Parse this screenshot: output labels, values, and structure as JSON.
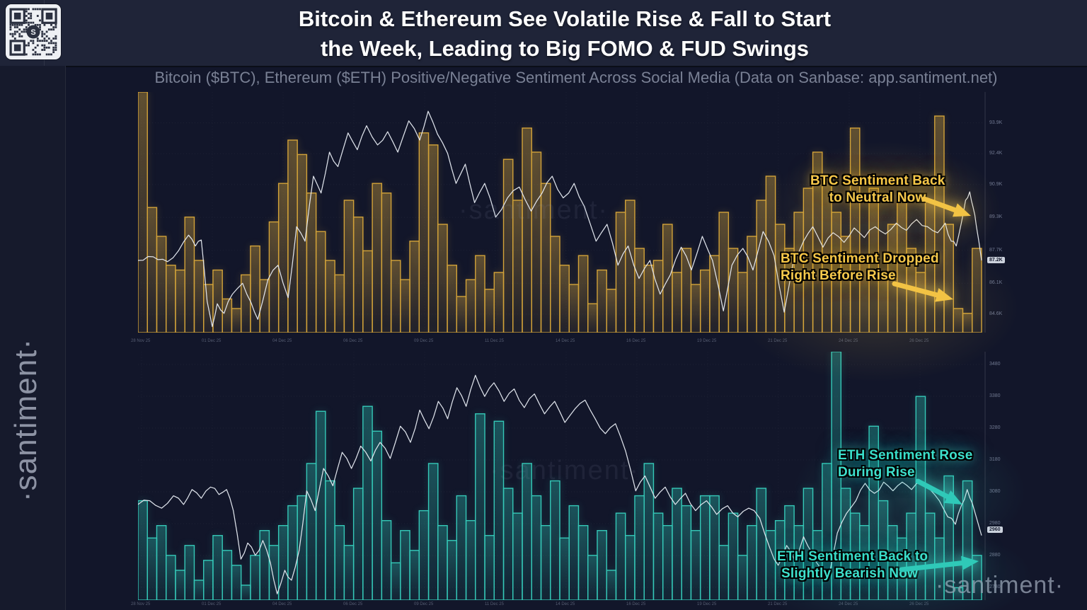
{
  "header": {
    "title_line1": "Bitcoin & Ethereum See Volatile Rise & Fall to Start",
    "title_line2": "the Week, Leading to Big FOMO & FUD Swings"
  },
  "subtitle": "Bitcoin ($BTC), Ethereum ($ETH) Positive/Negative Sentiment Across Social Media (Data on Sanbase: app.santiment.net)",
  "branding": {
    "sidebar_vertical_text": "·santiment·",
    "chart_watermark": "·santiment·",
    "footer_logo": "·santiment·",
    "qr_center_letter": "S"
  },
  "annotations": {
    "btc_back": {
      "line1": "BTC Sentiment Back",
      "line2": "to Neutral Now"
    },
    "btc_dropped": {
      "line1": "BTC Sentiment Dropped",
      "line2": "Right Before Rise"
    },
    "eth_rose": {
      "line1": "ETH Sentiment Rose",
      "line2": "During Rise"
    },
    "eth_bearish": {
      "line1": "ETH Sentiment Back to",
      "line2": "Slightly Bearish Now"
    }
  },
  "colors": {
    "page_bg": "#12162a",
    "header_bg": "#1f2438",
    "gold_bar": "#d3a339",
    "gold_text": "#f6c94c",
    "teal_bar": "#35c9b8",
    "teal_text": "#3ee0cc",
    "price_line": "#e9edf4",
    "axis_text": "#707890"
  },
  "chart_data": [
    {
      "type": "bar",
      "combo": "bar+line",
      "title": "BTC social sentiment (gold bars) with BTC price (white line)",
      "bar_series": "BTC Positive/Negative Sentiment (relative height 0-1)",
      "line_series": "BTC Price (USD)",
      "legend_position": "none",
      "grid": true,
      "ylim_price": [
        83700,
        95400
      ],
      "y_axis_labels": [
        {
          "text": "93.9K",
          "value": 93900
        },
        {
          "text": "92.4K",
          "value": 92400
        },
        {
          "text": "90.9K",
          "value": 90900
        },
        {
          "text": "89.3K",
          "value": 89300
        },
        {
          "text": "87.7K",
          "value": 87700
        },
        {
          "text": "86.1K",
          "value": 86100
        },
        {
          "text": "84.6K",
          "value": 84600
        }
      ],
      "current_value_badge": {
        "text": "87.2K",
        "value": 87200
      },
      "x_axis_labels": [
        "28 Nov 25",
        "01 Dec 25",
        "04 Dec 25",
        "06 Dec 25",
        "09 Dec 25",
        "11 Dec 25",
        "14 Dec 25",
        "16 Dec 25",
        "19 Dec 25",
        "21 Dec 25",
        "24 Dec 25",
        "26 Dec 25"
      ],
      "bars_relative": [
        1.0,
        0.52,
        0.4,
        0.28,
        0.26,
        0.48,
        0.3,
        0.2,
        0.26,
        0.14,
        0.1,
        0.24,
        0.36,
        0.22,
        0.46,
        0.62,
        0.8,
        0.74,
        0.58,
        0.42,
        0.3,
        0.24,
        0.55,
        0.48,
        0.34,
        0.62,
        0.58,
        0.3,
        0.22,
        0.38,
        0.83,
        0.78,
        0.45,
        0.28,
        0.15,
        0.22,
        0.32,
        0.18,
        0.25,
        0.72,
        0.55,
        0.85,
        0.75,
        0.62,
        0.4,
        0.28,
        0.2,
        0.32,
        0.12,
        0.26,
        0.18,
        0.5,
        0.55,
        0.35,
        0.28,
        0.3,
        0.45,
        0.25,
        0.35,
        0.2,
        0.26,
        0.32,
        0.5,
        0.35,
        0.25,
        0.4,
        0.55,
        0.65,
        0.45,
        0.35,
        0.5,
        0.6,
        0.75,
        0.65,
        0.5,
        0.4,
        0.85,
        0.3,
        0.6,
        0.25,
        0.45,
        0.55,
        0.35,
        0.25,
        0.55,
        0.9,
        0.45,
        0.1,
        0.08,
        0.35
      ],
      "line_points": [
        [
          0.0,
          0.7
        ],
        [
          0.018,
          0.685
        ],
        [
          0.035,
          0.705
        ],
        [
          0.048,
          0.66
        ],
        [
          0.06,
          0.595
        ],
        [
          0.068,
          0.64
        ],
        [
          0.075,
          0.615
        ],
        [
          0.082,
          0.87
        ],
        [
          0.088,
          0.975
        ],
        [
          0.094,
          0.88
        ],
        [
          0.102,
          0.92
        ],
        [
          0.112,
          0.84
        ],
        [
          0.124,
          0.795
        ],
        [
          0.134,
          0.875
        ],
        [
          0.142,
          0.945
        ],
        [
          0.154,
          0.78
        ],
        [
          0.166,
          0.72
        ],
        [
          0.178,
          0.855
        ],
        [
          0.188,
          0.56
        ],
        [
          0.198,
          0.62
        ],
        [
          0.208,
          0.35
        ],
        [
          0.217,
          0.42
        ],
        [
          0.227,
          0.25
        ],
        [
          0.237,
          0.31
        ],
        [
          0.249,
          0.17
        ],
        [
          0.26,
          0.24
        ],
        [
          0.271,
          0.14
        ],
        [
          0.284,
          0.22
        ],
        [
          0.296,
          0.165
        ],
        [
          0.308,
          0.25
        ],
        [
          0.321,
          0.12
        ],
        [
          0.334,
          0.2
        ],
        [
          0.344,
          0.08
        ],
        [
          0.355,
          0.175
        ],
        [
          0.367,
          0.255
        ],
        [
          0.377,
          0.38
        ],
        [
          0.388,
          0.3
        ],
        [
          0.399,
          0.46
        ],
        [
          0.411,
          0.38
        ],
        [
          0.424,
          0.52
        ],
        [
          0.438,
          0.44
        ],
        [
          0.452,
          0.395
        ],
        [
          0.466,
          0.495
        ],
        [
          0.479,
          0.42
        ],
        [
          0.491,
          0.35
        ],
        [
          0.504,
          0.44
        ],
        [
          0.517,
          0.38
        ],
        [
          0.529,
          0.475
        ],
        [
          0.543,
          0.62
        ],
        [
          0.556,
          0.55
        ],
        [
          0.569,
          0.72
        ],
        [
          0.581,
          0.64
        ],
        [
          0.594,
          0.775
        ],
        [
          0.607,
          0.7
        ],
        [
          0.619,
          0.84
        ],
        [
          0.631,
          0.76
        ],
        [
          0.644,
          0.645
        ],
        [
          0.656,
          0.74
        ],
        [
          0.669,
          0.6
        ],
        [
          0.681,
          0.7
        ],
        [
          0.694,
          0.91
        ],
        [
          0.704,
          0.72
        ],
        [
          0.717,
          0.65
        ],
        [
          0.729,
          0.74
        ],
        [
          0.741,
          0.58
        ],
        [
          0.754,
          0.68
        ],
        [
          0.766,
          0.915
        ],
        [
          0.777,
          0.7
        ],
        [
          0.789,
          0.62
        ],
        [
          0.8,
          0.56
        ],
        [
          0.812,
          0.645
        ],
        [
          0.824,
          0.585
        ],
        [
          0.837,
          0.625
        ],
        [
          0.849,
          0.565
        ],
        [
          0.861,
          0.605
        ],
        [
          0.874,
          0.56
        ],
        [
          0.886,
          0.59
        ],
        [
          0.899,
          0.545
        ],
        [
          0.911,
          0.575
        ],
        [
          0.923,
          0.53
        ],
        [
          0.936,
          0.56
        ],
        [
          0.948,
          0.585
        ],
        [
          0.957,
          0.545
        ],
        [
          0.964,
          0.62
        ],
        [
          0.97,
          0.64
        ],
        [
          0.976,
          0.545
        ],
        [
          0.981,
          0.45
        ],
        [
          0.986,
          0.415
        ],
        [
          0.99,
          0.48
        ],
        [
          0.994,
          0.56
        ],
        [
          1.0,
          0.7
        ]
      ]
    },
    {
      "type": "bar",
      "combo": "bar+line",
      "title": "ETH social sentiment (teal bars) with ETH price (white line)",
      "bar_series": "ETH Positive/Negative Sentiment (relative height 0-1)",
      "line_series": "ETH Price (USD)",
      "legend_position": "none",
      "grid": true,
      "ylim_price": [
        2740,
        3520
      ],
      "y_axis_labels": [
        {
          "text": "3480",
          "value": 3480
        },
        {
          "text": "3380",
          "value": 3380
        },
        {
          "text": "3280",
          "value": 3280
        },
        {
          "text": "3180",
          "value": 3180
        },
        {
          "text": "3080",
          "value": 3080
        },
        {
          "text": "2980",
          "value": 2980
        },
        {
          "text": "2880",
          "value": 2880
        },
        {
          "text": "2780",
          "value": 2780
        }
      ],
      "current_value_badge": {
        "text": "2960",
        "value": 2960
      },
      "x_axis_labels": [
        "28 Nov 25",
        "01 Dec 25",
        "04 Dec 25",
        "06 Dec 25",
        "09 Dec 25",
        "11 Dec 25",
        "14 Dec 25",
        "16 Dec 25",
        "19 Dec 25",
        "21 Dec 25",
        "24 Dec 25",
        "26 Dec 25"
      ],
      "bars_relative": [
        0.4,
        0.25,
        0.3,
        0.18,
        0.12,
        0.22,
        0.08,
        0.16,
        0.26,
        0.2,
        0.14,
        0.06,
        0.18,
        0.28,
        0.22,
        0.3,
        0.38,
        0.42,
        0.55,
        0.76,
        0.48,
        0.3,
        0.22,
        0.45,
        0.78,
        0.68,
        0.32,
        0.15,
        0.28,
        0.2,
        0.36,
        0.55,
        0.3,
        0.24,
        0.42,
        0.32,
        0.75,
        0.26,
        0.72,
        0.45,
        0.35,
        0.55,
        0.42,
        0.3,
        0.48,
        0.25,
        0.38,
        0.3,
        0.18,
        0.28,
        0.12,
        0.35,
        0.26,
        0.42,
        0.55,
        0.35,
        0.3,
        0.45,
        0.38,
        0.28,
        0.42,
        0.42,
        0.22,
        0.35,
        0.18,
        0.3,
        0.45,
        0.28,
        0.32,
        0.38,
        0.3,
        0.45,
        0.28,
        0.55,
        1.0,
        0.45,
        0.35,
        0.3,
        0.7,
        0.4,
        0.3,
        0.25,
        0.35,
        0.82,
        0.35,
        0.25,
        0.5,
        0.05,
        0.48,
        0.18
      ],
      "line_points": [
        [
          0.0,
          0.615
        ],
        [
          0.014,
          0.6
        ],
        [
          0.028,
          0.63
        ],
        [
          0.042,
          0.58
        ],
        [
          0.054,
          0.615
        ],
        [
          0.064,
          0.555
        ],
        [
          0.075,
          0.59
        ],
        [
          0.086,
          0.545
        ],
        [
          0.096,
          0.575
        ],
        [
          0.105,
          0.555
        ],
        [
          0.113,
          0.64
        ],
        [
          0.122,
          0.835
        ],
        [
          0.13,
          0.77
        ],
        [
          0.139,
          0.82
        ],
        [
          0.148,
          0.76
        ],
        [
          0.157,
          0.85
        ],
        [
          0.165,
          0.975
        ],
        [
          0.174,
          0.88
        ],
        [
          0.182,
          0.92
        ],
        [
          0.191,
          0.8
        ],
        [
          0.2,
          0.56
        ],
        [
          0.21,
          0.64
        ],
        [
          0.22,
          0.47
        ],
        [
          0.231,
          0.54
        ],
        [
          0.242,
          0.405
        ],
        [
          0.253,
          0.47
        ],
        [
          0.264,
          0.38
        ],
        [
          0.276,
          0.44
        ],
        [
          0.287,
          0.365
        ],
        [
          0.299,
          0.43
        ],
        [
          0.311,
          0.3
        ],
        [
          0.323,
          0.365
        ],
        [
          0.334,
          0.235
        ],
        [
          0.345,
          0.31
        ],
        [
          0.356,
          0.2
        ],
        [
          0.367,
          0.27
        ],
        [
          0.378,
          0.145
        ],
        [
          0.389,
          0.22
        ],
        [
          0.4,
          0.095
        ],
        [
          0.411,
          0.18
        ],
        [
          0.422,
          0.125
        ],
        [
          0.434,
          0.2
        ],
        [
          0.446,
          0.15
        ],
        [
          0.458,
          0.225
        ],
        [
          0.47,
          0.17
        ],
        [
          0.482,
          0.25
        ],
        [
          0.494,
          0.2
        ],
        [
          0.506,
          0.285
        ],
        [
          0.518,
          0.23
        ],
        [
          0.53,
          0.195
        ],
        [
          0.542,
          0.27
        ],
        [
          0.554,
          0.33
        ],
        [
          0.566,
          0.29
        ],
        [
          0.578,
          0.4
        ],
        [
          0.59,
          0.56
        ],
        [
          0.601,
          0.5
        ],
        [
          0.613,
          0.59
        ],
        [
          0.625,
          0.545
        ],
        [
          0.637,
          0.615
        ],
        [
          0.649,
          0.57
        ],
        [
          0.661,
          0.64
        ],
        [
          0.674,
          0.6
        ],
        [
          0.686,
          0.655
        ],
        [
          0.699,
          0.62
        ],
        [
          0.711,
          0.665
        ],
        [
          0.724,
          0.63
        ],
        [
          0.737,
          0.67
        ],
        [
          0.749,
          0.79
        ],
        [
          0.759,
          0.86
        ],
        [
          0.769,
          0.78
        ],
        [
          0.779,
          0.845
        ],
        [
          0.789,
          0.745
        ],
        [
          0.799,
          0.81
        ],
        [
          0.809,
          0.87
        ],
        [
          0.819,
          0.905
        ],
        [
          0.829,
          0.73
        ],
        [
          0.84,
          0.65
        ],
        [
          0.851,
          0.6
        ],
        [
          0.862,
          0.53
        ],
        [
          0.873,
          0.57
        ],
        [
          0.884,
          0.525
        ],
        [
          0.895,
          0.56
        ],
        [
          0.906,
          0.525
        ],
        [
          0.917,
          0.555
        ],
        [
          0.928,
          0.52
        ],
        [
          0.939,
          0.555
        ],
        [
          0.95,
          0.6
        ],
        [
          0.96,
          0.665
        ],
        [
          0.969,
          0.695
        ],
        [
          0.976,
          0.62
        ],
        [
          0.983,
          0.555
        ],
        [
          0.989,
          0.61
        ],
        [
          1.0,
          0.74
        ]
      ]
    }
  ]
}
